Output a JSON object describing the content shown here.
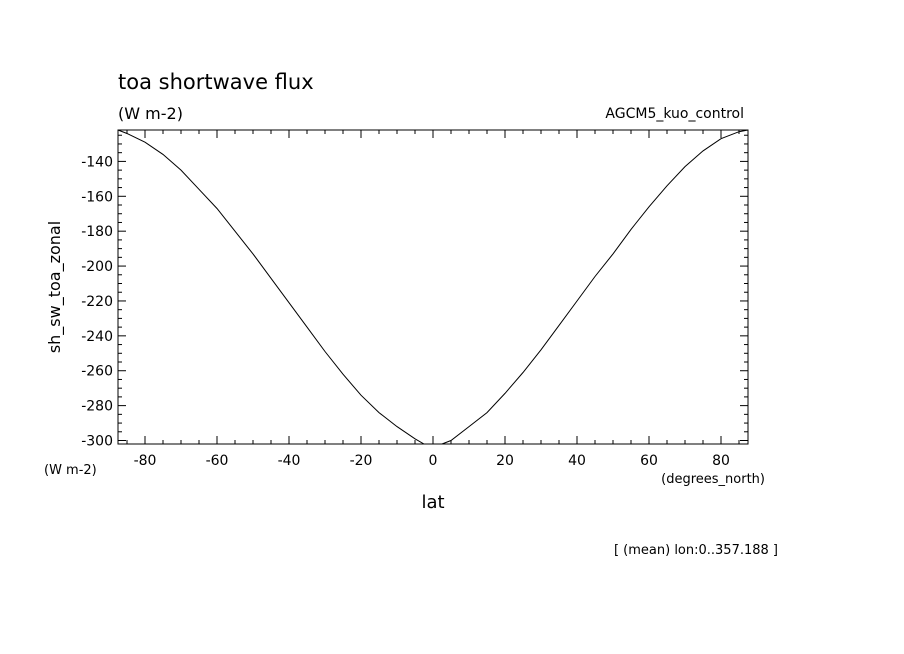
{
  "chart_data": {
    "type": "line",
    "title": "toa shortwave flux",
    "subtitle": "(W m-2)",
    "run_label": "AGCM5_kuo_control",
    "ylabel": "sh_sw_toa_zonal",
    "y_units": "(W m-2)",
    "xlabel": "lat",
    "x_units": "(degrees_north)",
    "footnote": "[ (mean) lon:0..357.188 ]",
    "xlim": [
      -87.5,
      87.5
    ],
    "ylim": [
      -302,
      -122
    ],
    "x_ticks": [
      -80,
      -60,
      -40,
      -20,
      0,
      20,
      40,
      60,
      80
    ],
    "y_ticks": [
      -140,
      -160,
      -180,
      -200,
      -220,
      -240,
      -260,
      -280,
      -300
    ],
    "x_tick_labels": [
      "-80",
      "-60",
      "-40",
      "-20",
      "0",
      "20",
      "40",
      "60",
      "80"
    ],
    "y_tick_labels": [
      "-140",
      "-160",
      "-180",
      "-200",
      "-220",
      "-240",
      "-260",
      "-280",
      "-300"
    ],
    "grid": false,
    "series": [
      {
        "x": [
          -87.5,
          -85,
          -80,
          -75,
          -70,
          -65,
          -60,
          -55,
          -50,
          -45,
          -40,
          -35,
          -30,
          -25,
          -20,
          -15,
          -10,
          -5,
          -2.5,
          0,
          2.5,
          5,
          10,
          15,
          20,
          25,
          30,
          35,
          40,
          45,
          50,
          55,
          60,
          65,
          70,
          75,
          80,
          85,
          87.5
        ],
        "y": [
          -122,
          -124,
          -129,
          -136,
          -145,
          -156,
          -167,
          -180,
          -193,
          -207,
          -221,
          -235,
          -249,
          -262,
          -274,
          -284,
          -292,
          -299,
          -302,
          -302,
          -302,
          -300,
          -292,
          -284,
          -273,
          -261,
          -248,
          -234,
          -220,
          -206,
          -193,
          -179,
          -166,
          -154,
          -143,
          -134,
          -127,
          -123,
          -122
        ]
      }
    ]
  }
}
